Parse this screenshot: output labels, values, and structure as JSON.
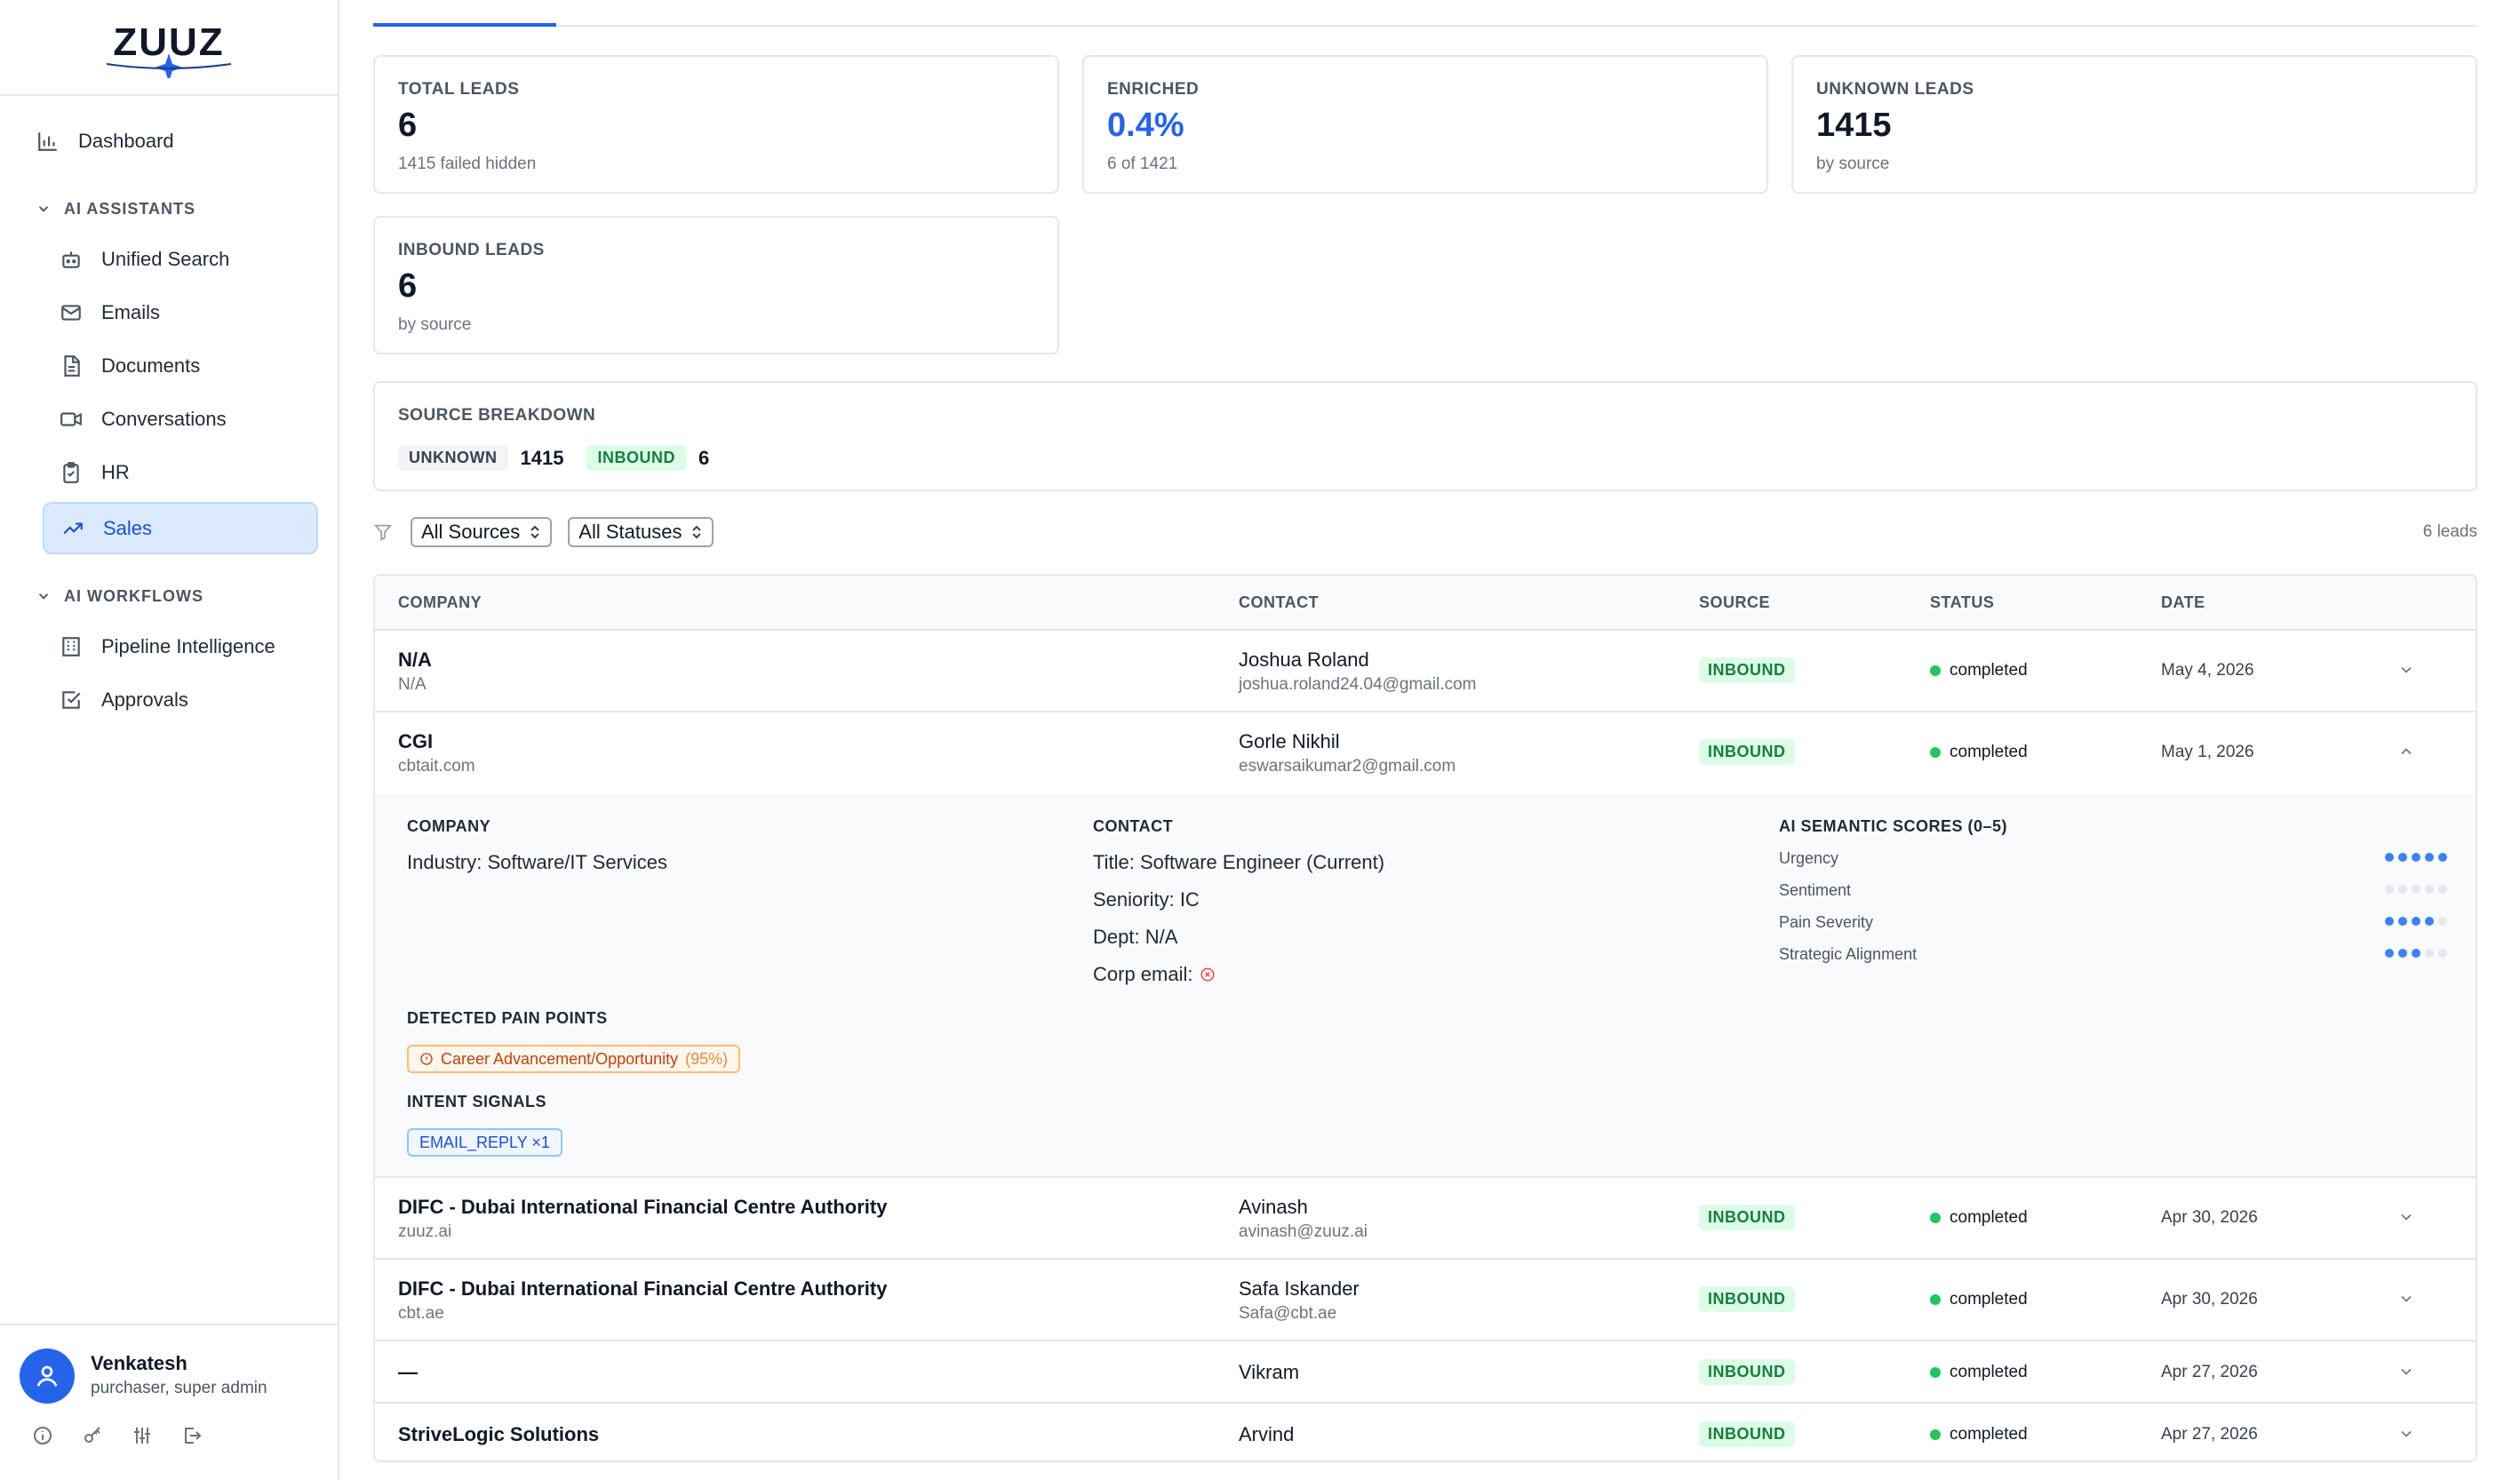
{
  "app": {
    "logo_text": "ZUUZ",
    "accent": "#2563eb"
  },
  "sidebar": {
    "dashboard": "Dashboard",
    "ai_assistants_head": "AI ASSISTANTS",
    "assistants": [
      {
        "label": "Unified Search",
        "icon": "robot-icon"
      },
      {
        "label": "Emails",
        "icon": "mail-icon"
      },
      {
        "label": "Documents",
        "icon": "document-icon"
      },
      {
        "label": "Conversations",
        "icon": "video-icon"
      },
      {
        "label": "HR",
        "icon": "clipboard-icon"
      },
      {
        "label": "Sales",
        "icon": "trending-up-icon"
      }
    ],
    "ai_workflows_head": "AI WORKFLOWS",
    "workflows": [
      {
        "label": "Pipeline Intelligence",
        "icon": "building-icon"
      },
      {
        "label": "Approvals",
        "icon": "check-square-icon"
      }
    ],
    "user": {
      "name": "Venkatesh",
      "role": "purchaser, super admin"
    }
  },
  "stats": {
    "total": {
      "label": "TOTAL LEADS",
      "value": "6",
      "sub": "1415 failed hidden"
    },
    "enriched": {
      "label": "ENRICHED",
      "value": "0.4%",
      "sub": "6 of 1421"
    },
    "unknown": {
      "label": "UNKNOWN LEADS",
      "value": "1415",
      "sub": "by source"
    },
    "inbound": {
      "label": "INBOUND LEADS",
      "value": "6",
      "sub": "by source"
    }
  },
  "source_breakdown": {
    "label": "SOURCE BREAKDOWN",
    "items": [
      {
        "name": "UNKNOWN",
        "count": "1415"
      },
      {
        "name": "INBOUND",
        "count": "6"
      }
    ]
  },
  "filters": {
    "source": "All Sources",
    "status": "All Statuses",
    "count": "6 leads"
  },
  "table": {
    "headers": {
      "company": "COMPANY",
      "contact": "CONTACT",
      "source": "SOURCE",
      "status": "STATUS",
      "date": "DATE"
    },
    "rows": [
      {
        "company": "N/A",
        "domain": "N/A",
        "contact": "Joshua Roland",
        "email": "joshua.roland24.04@gmail.com",
        "source": "INBOUND",
        "status": "completed",
        "date": "May 4, 2026"
      },
      {
        "company": "CGI",
        "domain": "cbtait.com",
        "contact": "Gorle Nikhil",
        "email": "eswarsaikumar2@gmail.com",
        "source": "INBOUND",
        "status": "completed",
        "date": "May 1, 2026"
      },
      {
        "company": "DIFC - Dubai International Financial Centre Authority",
        "domain": "zuuz.ai",
        "contact": "Avinash",
        "email": "avinash@zuuz.ai",
        "source": "INBOUND",
        "status": "completed",
        "date": "Apr 30, 2026"
      },
      {
        "company": "DIFC - Dubai International Financial Centre Authority",
        "domain": "cbt.ae",
        "contact": "Safa Iskander",
        "email": "Safa@cbt.ae",
        "source": "INBOUND",
        "status": "completed",
        "date": "Apr 30, 2026"
      },
      {
        "company": "—",
        "domain": "",
        "contact": "Vikram",
        "email": "",
        "source": "INBOUND",
        "status": "completed",
        "date": "Apr 27, 2026"
      },
      {
        "company": "StriveLogic Solutions",
        "domain": "",
        "contact": "Arvind",
        "email": "",
        "source": "INBOUND",
        "status": "completed",
        "date": "Apr 27, 2026"
      }
    ]
  },
  "detail": {
    "company_head": "COMPANY",
    "industry": "Industry: Software/IT Services",
    "contact_head": "CONTACT",
    "title": "Title: Software Engineer (Current)",
    "seniority": "Seniority: IC",
    "dept": "Dept: N/A",
    "corp_email": "Corp email:",
    "scores_head": "AI SEMANTIC SCORES (0–5)",
    "scores": [
      {
        "label": "Urgency",
        "value": 5
      },
      {
        "label": "Sentiment",
        "value": 0
      },
      {
        "label": "Pain Severity",
        "value": 4
      },
      {
        "label": "Strategic Alignment",
        "value": 3
      }
    ],
    "pain_head": "DETECTED PAIN POINTS",
    "pain_label": "Career Advancement/Opportunity",
    "pain_pct": "(95%)",
    "intent_head": "INTENT SIGNALS",
    "intent_label": "EMAIL_REPLY ×1"
  }
}
